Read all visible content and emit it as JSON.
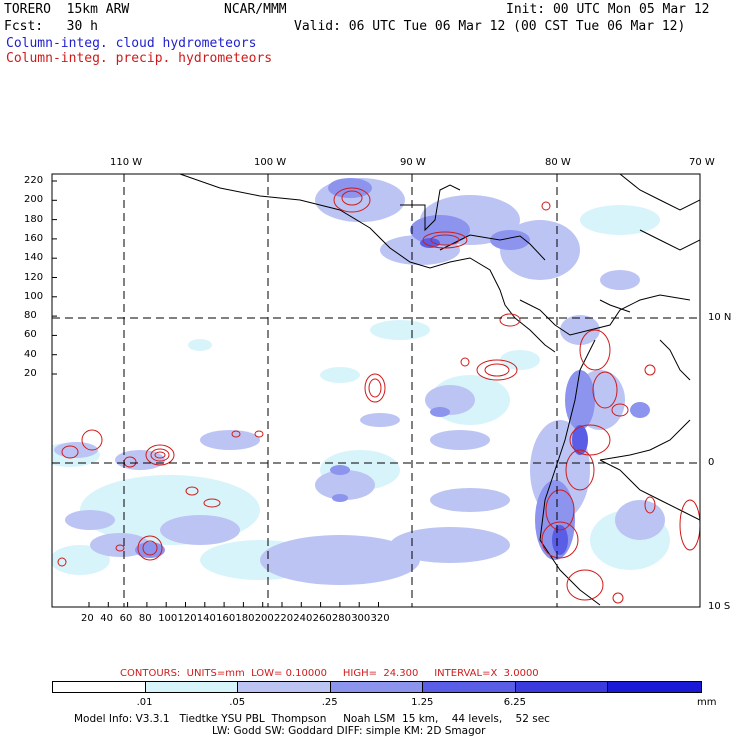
{
  "header": {
    "model": "TORERO  15km ARW",
    "org": "NCAR/MMM",
    "init": "Init: 00 UTC Mon 05 Mar 12",
    "fcst": "Fcst:   30 h",
    "valid": "Valid: 06 UTC Tue 06 Mar 12 (00 CST Tue 06 Mar 12)",
    "field1": "Column-integ. cloud hydrometeors",
    "field2": "Column-integ. precip. hydrometeors"
  },
  "lon_labels": [
    "110 W",
    "100 W",
    "90 W",
    "80 W",
    "70 W"
  ],
  "lat_labels": [
    "10 N",
    "0",
    "10 S"
  ],
  "y_ticks": [
    "220",
    "200",
    "180",
    "160",
    "140",
    "120",
    "100",
    "80",
    "60",
    "40",
    "20"
  ],
  "x_ticks": [
    "20",
    "40",
    "60",
    "80",
    "100",
    "120",
    "140",
    "160",
    "180",
    "200",
    "220",
    "240",
    "260",
    "280",
    "300",
    "320"
  ],
  "contours": {
    "label": "CONTOURS:  UNITS=mm  LOW= 0.10000     HIGH=  24.300     INTERVAL=X  3.0000"
  },
  "legend": {
    "labels": [
      ".01",
      ".05",
      ".25",
      "1.25",
      "6.25"
    ],
    "unit": "mm",
    "colors": [
      "#ffffff",
      "#d8f4fb",
      "#bcc4f4",
      "#8c94ee",
      "#5a5ee6",
      "#3a3ade",
      "#1a1ad6"
    ]
  },
  "footer": {
    "line1": "Model Info: V3.3.1   Tiedtke YSU PBL  Thompson     Noah LSM  15 km,    44 levels,    52 sec",
    "line2": "LW: Godd SW: Goddard DIFF: simple KM: 2D Smagor"
  },
  "colors": {
    "cloud_light": "#d8f4fb",
    "cloud_mid": "#bcc4f4",
    "cloud_dark": "#8c94ee",
    "cloud_darker": "#5a5ee6",
    "precip": "#d01a1a"
  }
}
